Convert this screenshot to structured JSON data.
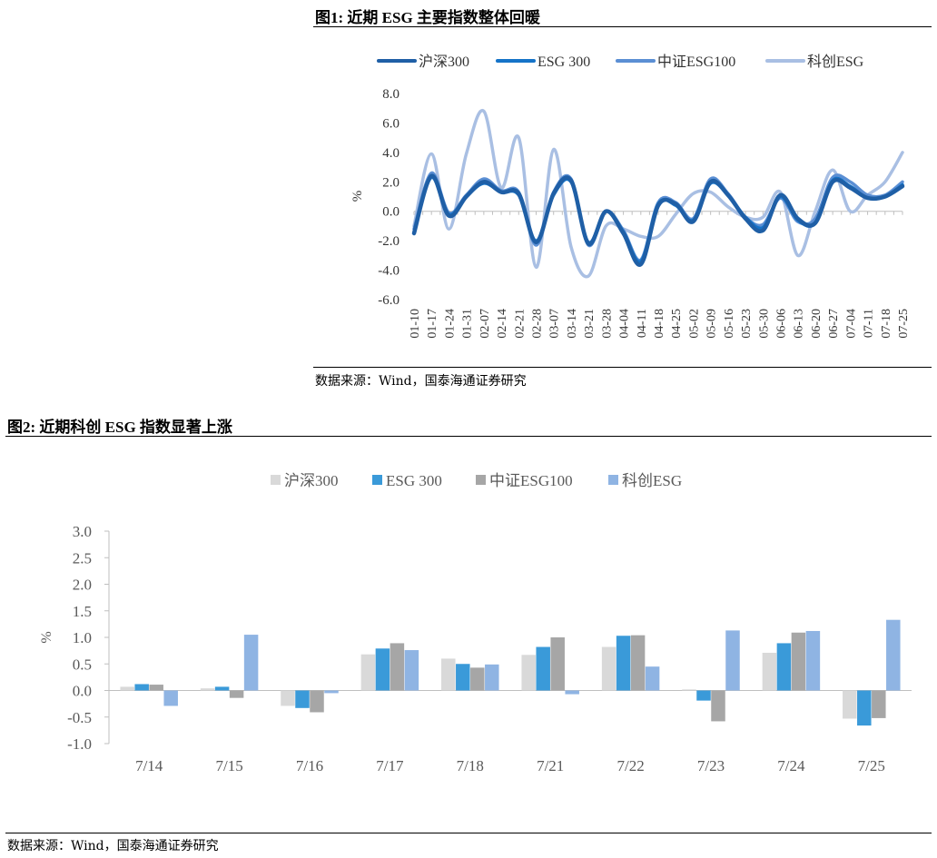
{
  "figure1": {
    "title": "图1:  近期 ESG 主要指数整体回暖",
    "source": "数据来源：Wind，国泰海通证券研究"
  },
  "figure2": {
    "title": "图2:  近期科创 ESG 指数显著上涨",
    "source": "数据来源：Wind，国泰海通证券研究"
  },
  "colors": {
    "line_hs300": "#1f5fa6",
    "line_esg300": "#1573c8",
    "line_zz100": "#5b8fd4",
    "line_kc": "#a9bfe3",
    "bar_hs300": "#d9d9d9",
    "bar_esg300": "#3a9ad9",
    "bar_zz100": "#a6a6a6",
    "bar_kc": "#8fb4e3"
  },
  "chart_data": [
    {
      "type": "line",
      "ylabel": "%",
      "ylim": [
        -6,
        8
      ],
      "yticks": [
        "8.0",
        "6.0",
        "4.0",
        "2.0",
        "0.0",
        "-2.0",
        "-4.0",
        "-6.0"
      ],
      "x": [
        "01-10",
        "01-17",
        "01-24",
        "01-31",
        "02-07",
        "02-14",
        "02-21",
        "02-28",
        "03-07",
        "03-14",
        "03-21",
        "03-28",
        "04-04",
        "04-11",
        "04-18",
        "04-25",
        "05-02",
        "05-09",
        "05-16",
        "05-23",
        "05-30",
        "06-06",
        "06-13",
        "06-20",
        "06-27",
        "07-04",
        "07-11",
        "07-18",
        "07-25"
      ],
      "series": [
        {
          "name": "沪深300",
          "values": [
            -1.5,
            2.4,
            -0.3,
            1.0,
            2.0,
            1.3,
            1.2,
            -2.1,
            1.2,
            2.1,
            -2.2,
            0.0,
            -1.5,
            -3.6,
            0.4,
            0.5,
            -0.7,
            2.0,
            1.1,
            -0.5,
            -1.3,
            1.1,
            -0.5,
            -0.8,
            2.0,
            1.6,
            0.9,
            1.0,
            1.7
          ]
        },
        {
          "name": "ESG 300",
          "values": [
            -1.4,
            2.3,
            -0.2,
            1.0,
            1.9,
            1.3,
            1.1,
            -2.0,
            1.1,
            2.0,
            -2.1,
            0.0,
            -1.4,
            -3.4,
            0.5,
            0.4,
            -0.6,
            1.9,
            1.1,
            -0.4,
            -1.1,
            1.0,
            -0.6,
            -0.8,
            2.1,
            1.7,
            0.9,
            1.0,
            1.8
          ]
        },
        {
          "name": "中证ESG100",
          "values": [
            -1.2,
            2.6,
            -0.1,
            1.1,
            2.2,
            1.4,
            1.3,
            -2.3,
            1.3,
            2.2,
            -2.3,
            0.0,
            -1.3,
            -3.3,
            0.6,
            0.6,
            -0.5,
            2.2,
            1.2,
            -0.4,
            -0.9,
            0.9,
            -0.7,
            -0.5,
            2.3,
            2.0,
            1.1,
            1.1,
            2.0
          ]
        },
        {
          "name": "科创ESG",
          "values": [
            -1.0,
            3.9,
            -1.2,
            3.9,
            6.8,
            1.6,
            5.0,
            -3.8,
            4.2,
            -2.4,
            -4.4,
            -1.0,
            -1.2,
            -1.7,
            -1.7,
            -0.2,
            1.2,
            1.3,
            0.3,
            -0.4,
            -0.4,
            1.3,
            -3.0,
            0.0,
            2.8,
            0.0,
            1.1,
            2.0,
            4.0
          ]
        }
      ]
    },
    {
      "type": "bar",
      "ylabel": "%",
      "ylim": [
        -1.0,
        3.0
      ],
      "yticks": [
        "3.0",
        "2.5",
        "2.0",
        "1.5",
        "1.0",
        "0.5",
        "0.0",
        "-0.5",
        "-1.0"
      ],
      "categories": [
        "7/14",
        "7/15",
        "7/16",
        "7/17",
        "7/18",
        "7/21",
        "7/22",
        "7/23",
        "7/24",
        "7/25"
      ],
      "series": [
        {
          "name": "沪深300",
          "values": [
            0.07,
            0.04,
            -0.29,
            0.68,
            0.6,
            0.67,
            0.82,
            0.02,
            0.71,
            -0.53
          ]
        },
        {
          "name": "ESG 300",
          "values": [
            0.12,
            0.07,
            -0.33,
            0.79,
            0.5,
            0.82,
            1.03,
            -0.19,
            0.89,
            -0.66
          ]
        },
        {
          "name": "中证ESG100",
          "values": [
            0.11,
            -0.14,
            -0.41,
            0.89,
            0.43,
            1.0,
            1.04,
            -0.58,
            1.09,
            -0.52
          ]
        },
        {
          "name": "科创ESG",
          "values": [
            -0.29,
            1.05,
            -0.05,
            0.76,
            0.49,
            -0.07,
            0.45,
            1.13,
            1.12,
            1.33
          ]
        }
      ]
    }
  ]
}
